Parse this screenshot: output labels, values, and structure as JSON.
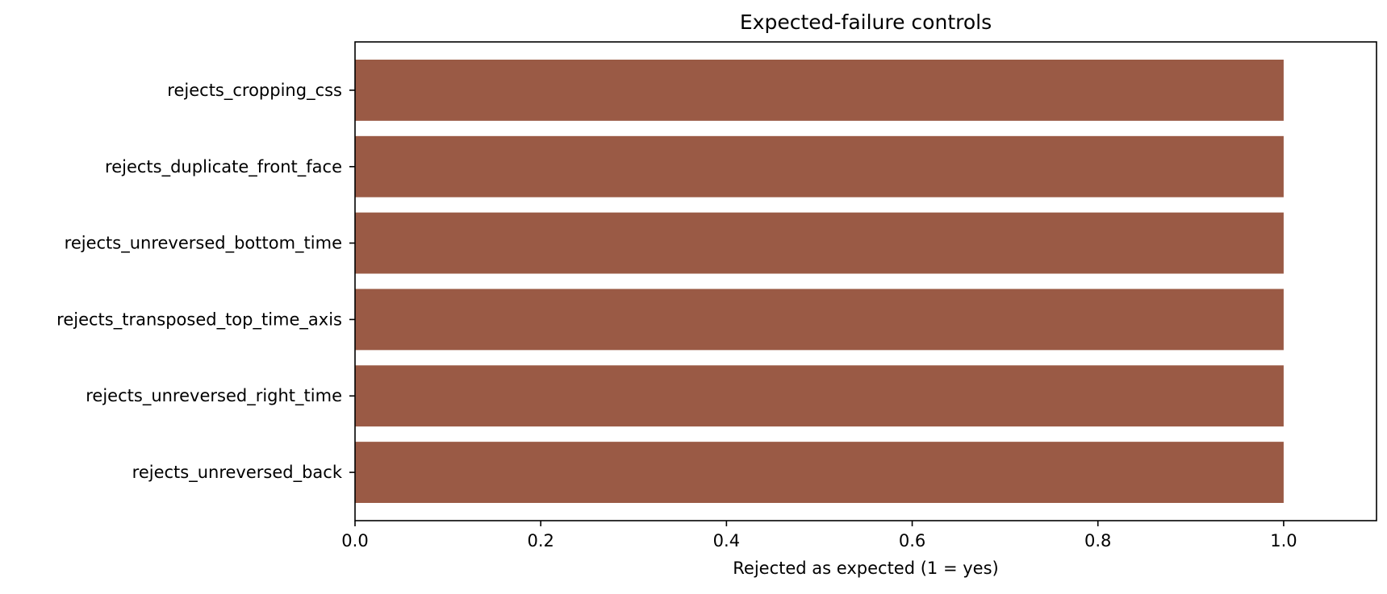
{
  "chart_data": {
    "type": "bar",
    "orientation": "horizontal",
    "title": "Expected-failure controls",
    "xlabel": "Rejected as expected (1 = yes)",
    "ylabel": "",
    "xlim": [
      0,
      1.1
    ],
    "xticks": [
      0.0,
      0.2,
      0.4,
      0.6,
      0.8,
      1.0
    ],
    "xtick_labels": [
      "0.0",
      "0.2",
      "0.4",
      "0.6",
      "0.8",
      "1.0"
    ],
    "grid": false,
    "legend": "none",
    "bar_color": "#9a5a45",
    "categories": [
      "rejects_cropping_css",
      "rejects_duplicate_front_face",
      "rejects_unreversed_bottom_time",
      "rejects_transposed_top_time_axis",
      "rejects_unreversed_right_time",
      "rejects_unreversed_back"
    ],
    "values": [
      1,
      1,
      1,
      1,
      1,
      1
    ]
  }
}
